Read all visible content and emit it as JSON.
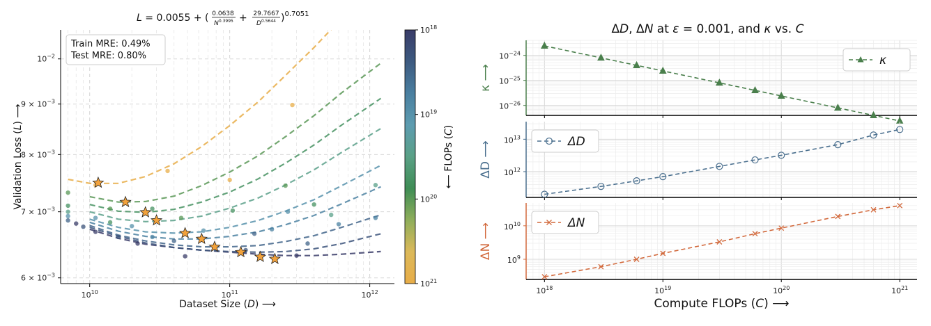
{
  "chart_data": [
    {
      "type": "scatter",
      "title": "L = 0.0055 + (0.0638/N^0.3995 + 29.7667/D^0.5644)^0.7051",
      "title_parts": {
        "lhs": "L = 0.0055 + (",
        "num1": "0.0638",
        "den1_base": "N",
        "den1_exp": "0.3995",
        "plus": "+",
        "num2": "29.7667",
        "den2_base": "D",
        "den2_exp": "0.5644",
        "rhs": ")",
        "outer_exp": "0.7051"
      },
      "xlabel": "Dataset Size (D) ⟶",
      "ylabel": "Validation Loss (L) ⟶",
      "xscale": "log",
      "yscale": "log",
      "xlim": [
        6200000000.0,
        1500000000000.0
      ],
      "ylim": [
        0.00592,
        0.0107
      ],
      "x_ticks": [
        {
          "value": 10000000000.0,
          "base": "10",
          "exp": "10"
        },
        {
          "value": 100000000000.0,
          "base": "10",
          "exp": "11"
        },
        {
          "value": 1000000000000.0,
          "base": "10",
          "exp": "12"
        }
      ],
      "y_ticks": [
        {
          "value": 0.01,
          "base": "10",
          "exp": "−2",
          "mant": ""
        },
        {
          "value": 0.009,
          "base": "10",
          "exp": "−3",
          "mant": "9 × "
        },
        {
          "value": 0.008,
          "base": "10",
          "exp": "−3",
          "mant": "8 × "
        },
        {
          "value": 0.007,
          "base": "10",
          "exp": "−3",
          "mant": "7 × "
        },
        {
          "value": 0.006,
          "base": "10",
          "exp": "−3",
          "mant": "6 × "
        }
      ],
      "grid": true,
      "legend": {
        "placement": "top-left",
        "lines": [
          "Train MRE: 0.49%",
          "Test MRE: 0.80%"
        ]
      },
      "colorbar": {
        "label": "⟵ FLOPs (C)",
        "scale": "log",
        "range": [
          1e+18,
          1e+21
        ],
        "ticks": [
          {
            "value": 1e+18,
            "base": "10",
            "exp": "18"
          },
          {
            "value": 1e+19,
            "base": "10",
            "exp": "19"
          },
          {
            "value": 1e+20,
            "base": "10",
            "exp": "20"
          },
          {
            "value": 1e+21,
            "base": "10",
            "exp": "21"
          }
        ],
        "colormap": [
          "#393c68",
          "#3d5a80",
          "#4a7fa0",
          "#5d9cb0",
          "#5aa086",
          "#3f8d55",
          "#8fae5b",
          "#dcb95a",
          "#e8ad48"
        ]
      },
      "series": [
        {
          "flops": 1e+18,
          "curve": [
            [
              10000000000.0,
              0.00672
            ],
            [
              16000000000.0,
              0.00658
            ],
            [
              25000000000.0,
              0.00649
            ],
            [
              40000000000.0,
              0.00644
            ],
            [
              63000000000.0,
              0.0064
            ],
            [
              100000000000.0,
              0.00637
            ],
            [
              160000000000.0,
              0.00634
            ],
            [
              250000000000.0,
              0.00632
            ],
            [
              400000000000.0,
              0.00632
            ],
            [
              630000000000.0,
              0.00634
            ],
            [
              1200000000000.0,
              0.00638
            ]
          ]
        },
        {
          "flops": 2e+18,
          "curve": [
            [
              10000000000.0,
              0.00675
            ],
            [
              16000000000.0,
              0.00661
            ],
            [
              25000000000.0,
              0.00651
            ],
            [
              40000000000.0,
              0.00644
            ],
            [
              63000000000.0,
              0.0064
            ],
            [
              100000000000.0,
              0.00638
            ],
            [
              160000000000.0,
              0.00637
            ],
            [
              250000000000.0,
              0.00638
            ],
            [
              400000000000.0,
              0.00642
            ],
            [
              630000000000.0,
              0.0065
            ],
            [
              1200000000000.0,
              0.00665
            ]
          ]
        },
        {
          "flops": 3e+18,
          "curve": [
            [
              10000000000.0,
              0.00678
            ],
            [
              16000000000.0,
              0.00663
            ],
            [
              25000000000.0,
              0.00654
            ],
            [
              40000000000.0,
              0.00648
            ],
            [
              63000000000.0,
              0.00645
            ],
            [
              100000000000.0,
              0.00645
            ],
            [
              160000000000.0,
              0.00647
            ],
            [
              250000000000.0,
              0.00653
            ],
            [
              400000000000.0,
              0.00662
            ],
            [
              630000000000.0,
              0.00675
            ],
            [
              1200000000000.0,
              0.00695
            ]
          ]
        },
        {
          "flops": 6e+18,
          "curve": [
            [
              10000000000.0,
              0.00683
            ],
            [
              16000000000.0,
              0.00669
            ],
            [
              25000000000.0,
              0.00661
            ],
            [
              40000000000.0,
              0.00657
            ],
            [
              63000000000.0,
              0.00657
            ],
            [
              100000000000.0,
              0.00661
            ],
            [
              160000000000.0,
              0.00668
            ],
            [
              250000000000.0,
              0.00679
            ],
            [
              400000000000.0,
              0.00694
            ],
            [
              630000000000.0,
              0.00713
            ],
            [
              1200000000000.0,
              0.00742
            ]
          ]
        },
        {
          "flops": 1e+19,
          "curve": [
            [
              10000000000.0,
              0.00688
            ],
            [
              16000000000.0,
              0.00675
            ],
            [
              25000000000.0,
              0.00668
            ],
            [
              40000000000.0,
              0.00666
            ],
            [
              63000000000.0,
              0.00668
            ],
            [
              100000000000.0,
              0.00675
            ],
            [
              160000000000.0,
              0.00686
            ],
            [
              250000000000.0,
              0.00701
            ],
            [
              400000000000.0,
              0.0072
            ],
            [
              630000000000.0,
              0.00744
            ],
            [
              1200000000000.0,
              0.0078
            ]
          ]
        },
        {
          "flops": 3e+19,
          "curve": [
            [
              10000000000.0,
              0.007
            ],
            [
              16000000000.0,
              0.00688
            ],
            [
              25000000000.0,
              0.00684
            ],
            [
              40000000000.0,
              0.00686
            ],
            [
              63000000000.0,
              0.00693
            ],
            [
              100000000000.0,
              0.00706
            ],
            [
              160000000000.0,
              0.00723
            ],
            [
              250000000000.0,
              0.00745
            ],
            [
              400000000000.0,
              0.00772
            ],
            [
              630000000000.0,
              0.00804
            ],
            [
              1200000000000.0,
              0.0085
            ]
          ]
        },
        {
          "flops": 6e+19,
          "curve": [
            [
              10000000000.0,
              0.00712
            ],
            [
              16000000000.0,
              0.00701
            ],
            [
              25000000000.0,
              0.00699
            ],
            [
              40000000000.0,
              0.00704
            ],
            [
              63000000000.0,
              0.00716
            ],
            [
              100000000000.0,
              0.00733
            ],
            [
              160000000000.0,
              0.00756
            ],
            [
              250000000000.0,
              0.00784
            ],
            [
              400000000000.0,
              0.00818
            ],
            [
              630000000000.0,
              0.00857
            ],
            [
              1200000000000.0,
              0.00912
            ]
          ]
        },
        {
          "flops": 1e+20,
          "curve": [
            [
              10000000000.0,
              0.00725
            ],
            [
              16000000000.0,
              0.00716
            ],
            [
              25000000000.0,
              0.00717
            ],
            [
              40000000000.0,
              0.00726
            ],
            [
              63000000000.0,
              0.00744
            ],
            [
              100000000000.0,
              0.00768
            ],
            [
              160000000000.0,
              0.00798
            ],
            [
              250000000000.0,
              0.00834
            ],
            [
              400000000000.0,
              0.00876
            ],
            [
              630000000000.0,
              0.00924
            ],
            [
              1200000000000.0,
              0.0099
            ]
          ]
        },
        {
          "flops": 1e+21,
          "curve": [
            [
              7000000000.0,
              0.00755
            ],
            [
              10000000000.0,
              0.00748
            ],
            [
              16000000000.0,
              0.00748
            ],
            [
              25000000000.0,
              0.0076
            ],
            [
              40000000000.0,
              0.00783
            ],
            [
              63000000000.0,
              0.00815
            ],
            [
              100000000000.0,
              0.00856
            ],
            [
              160000000000.0,
              0.00905
            ],
            [
              250000000000.0,
              0.00962
            ],
            [
              400000000000.0,
              0.01027
            ],
            [
              630000000000.0,
              0.01099
            ],
            [
              1200000000000.0,
              0.01195
            ]
          ]
        }
      ],
      "optima": [
        {
          "flops": 1e+21,
          "D": 11500000000.0,
          "L": 0.00749
        },
        {
          "flops": 1e+20,
          "D": 18000000000.0,
          "L": 0.00716
        },
        {
          "flops": 6e+19,
          "D": 25000000000.0,
          "L": 0.00699
        },
        {
          "flops": 3e+19,
          "D": 30000000000.0,
          "L": 0.00686
        },
        {
          "flops": 1e+19,
          "D": 48000000000.0,
          "L": 0.00666
        },
        {
          "flops": 6e+18,
          "D": 63000000000.0,
          "L": 0.00657
        },
        {
          "flops": 3e+18,
          "D": 78000000000.0,
          "L": 0.00645
        },
        {
          "flops": 2e+18,
          "D": 120000000000.0,
          "L": 0.00637
        },
        {
          "flops": 1.5e+18,
          "D": 165000000000.0,
          "L": 0.0063
        },
        {
          "flops": 1e+18,
          "D": 210000000000.0,
          "L": 0.00627
        }
      ],
      "points": [
        {
          "D": 7000000000.0,
          "L": 0.00732,
          "flops": 1e+20
        },
        {
          "D": 7000000000.0,
          "L": 0.0071,
          "flops": 6e+19
        },
        {
          "D": 7000000000.0,
          "L": 0.007,
          "flops": 3e+19
        },
        {
          "D": 7000000000.0,
          "L": 0.00693,
          "flops": 1e+19
        },
        {
          "D": 7000000000.0,
          "L": 0.00686,
          "flops": 3e+18
        },
        {
          "D": 8000000000.0,
          "L": 0.00681,
          "flops": 1e+18
        },
        {
          "D": 9000000000.0,
          "L": 0.00676,
          "flops": 2e+18
        },
        {
          "D": 11000000000.0,
          "L": 0.00745,
          "flops": 1e+21
        },
        {
          "D": 11000000000.0,
          "L": 0.0069,
          "flops": 1e+19
        },
        {
          "D": 11000000000.0,
          "L": 0.00668,
          "flops": 1e+18
        },
        {
          "D": 14000000000.0,
          "L": 0.00705,
          "flops": 1e+20
        },
        {
          "D": 14000000000.0,
          "L": 0.00683,
          "flops": 6e+19
        },
        {
          "D": 16000000000.0,
          "L": 0.0066,
          "flops": 2e+18
        },
        {
          "D": 20000000000.0,
          "L": 0.00677,
          "flops": 1e+19
        },
        {
          "D": 22000000000.0,
          "L": 0.0065,
          "flops": 1e+18
        },
        {
          "D": 28000000000.0,
          "L": 0.00705,
          "flops": 6e+19
        },
        {
          "D": 28000000000.0,
          "L": 0.0066,
          "flops": 6e+18
        },
        {
          "D": 36000000000.0,
          "L": 0.0077,
          "flops": 1e+21
        },
        {
          "D": 40000000000.0,
          "L": 0.00654,
          "flops": 3e+18
        },
        {
          "D": 45000000000.0,
          "L": 0.0069,
          "flops": 1e+20
        },
        {
          "D": 48000000000.0,
          "L": 0.00631,
          "flops": 1e+18
        },
        {
          "D": 65000000000.0,
          "L": 0.0067,
          "flops": 1e+19
        },
        {
          "D": 100000000000.0,
          "L": 0.00754,
          "flops": 1e+21
        },
        {
          "D": 105000000000.0,
          "L": 0.00702,
          "flops": 6e+19
        },
        {
          "D": 130000000000.0,
          "L": 0.0064,
          "flops": 2e+18
        },
        {
          "D": 150000000000.0,
          "L": 0.00665,
          "flops": 3e+18
        },
        {
          "D": 200000000000.0,
          "L": 0.00672,
          "flops": 6e+18
        },
        {
          "D": 250000000000.0,
          "L": 0.00744,
          "flops": 1e+20
        },
        {
          "D": 260000000000.0,
          "L": 0.007,
          "flops": 1e+19
        },
        {
          "D": 280000000000.0,
          "L": 0.00898,
          "flops": 1e+21
        },
        {
          "D": 300000000000.0,
          "L": 0.00632,
          "flops": 1e+18
        },
        {
          "D": 360000000000.0,
          "L": 0.0065,
          "flops": 3e+18
        },
        {
          "D": 400000000000.0,
          "L": 0.00712,
          "flops": 6e+19
        },
        {
          "D": 530000000000.0,
          "L": 0.00695,
          "flops": 3e+19
        },
        {
          "D": 600000000000.0,
          "L": 0.0068,
          "flops": 6e+18
        },
        {
          "D": 1100000000000.0,
          "L": 0.00745,
          "flops": 3e+19
        },
        {
          "D": 1100000000000.0,
          "L": 0.0069,
          "flops": 6e+18
        }
      ]
    },
    {
      "type": "line",
      "title": "ΔD, ΔN at ε = 0.001, and κ vs. C",
      "title_parts": {
        "a": "Δ",
        "b": "D",
        "c": ", Δ",
        "d": "N",
        "e": " at ",
        "f": "ε",
        "g": " = 0.001,  and ",
        "h": "κ",
        "i": " vs. ",
        "j": "C"
      },
      "xlabel": "Compute FLOPs (C) ⟶",
      "xscale": "log",
      "xlim": [
        7e+17,
        1.4e+21
      ],
      "x": [
        1e+18,
        3e+18,
        6e+18,
        1e+19,
        3e+19,
        6e+19,
        1e+20,
        3e+20,
        6e+20,
        1e+21
      ],
      "x_ticks": [
        {
          "value": 1e+18,
          "base": "10",
          "exp": "18"
        },
        {
          "value": 1e+19,
          "base": "10",
          "exp": "19"
        },
        {
          "value": 1e+20,
          "base": "10",
          "exp": "20"
        },
        {
          "value": 1e+21,
          "base": "10",
          "exp": "21"
        }
      ],
      "grid": true,
      "panels": [
        {
          "name": "κ",
          "ylabel": "κ ⟶",
          "color": "#4a7f4c",
          "marker": "triangle",
          "yscale": "log",
          "ylim": [
            4e-27,
            4e-24
          ],
          "legend_placement": "upper right",
          "y_ticks": [
            {
              "value": 1e-24,
              "base": "10",
              "exp": "−24"
            },
            {
              "value": 1e-25,
              "base": "10",
              "exp": "−25"
            },
            {
              "value": 1e-26,
              "base": "10",
              "exp": "−26"
            }
          ],
          "values": [
            2.4e-24,
            8e-25,
            4e-25,
            2.4e-25,
            8e-26,
            4e-26,
            2.4e-26,
            8e-27,
            4e-27,
            2.4e-27
          ]
        },
        {
          "name": "ΔD",
          "ylabel": "ΔD ⟶",
          "color": "#4a6f8e",
          "marker": "circle",
          "yscale": "log",
          "ylim": [
            160000000000.0,
            35000000000000.0
          ],
          "legend_placement": "upper left",
          "y_ticks": [
            {
              "value": 10000000000000.0,
              "base": "10",
              "exp": "13"
            },
            {
              "value": 1000000000000.0,
              "base": "10",
              "exp": "12"
            }
          ],
          "values": [
            200000000000.0,
            350000000000.0,
            520000000000.0,
            700000000000.0,
            1450000000000.0,
            2300000000000.0,
            3200000000000.0,
            6800000000000.0,
            13500000000000.0,
            20000000000000.0
          ]
        },
        {
          "name": "ΔN",
          "ylabel": "ΔN ⟶",
          "color": "#d2693c",
          "marker": "x",
          "yscale": "log",
          "ylim": [
            250000000.0,
            48000000000.0
          ],
          "legend_placement": "upper left",
          "y_ticks": [
            {
              "value": 10000000000.0,
              "base": "10",
              "exp": "10"
            },
            {
              "value": 1000000000.0,
              "base": "10",
              "exp": "9"
            }
          ],
          "values": [
            300000000.0,
            600000000.0,
            1000000000.0,
            1500000000.0,
            3300000000.0,
            5800000000.0,
            8500000000.0,
            19000000000.0,
            30000000000.0,
            40000000000.0
          ]
        }
      ]
    }
  ]
}
